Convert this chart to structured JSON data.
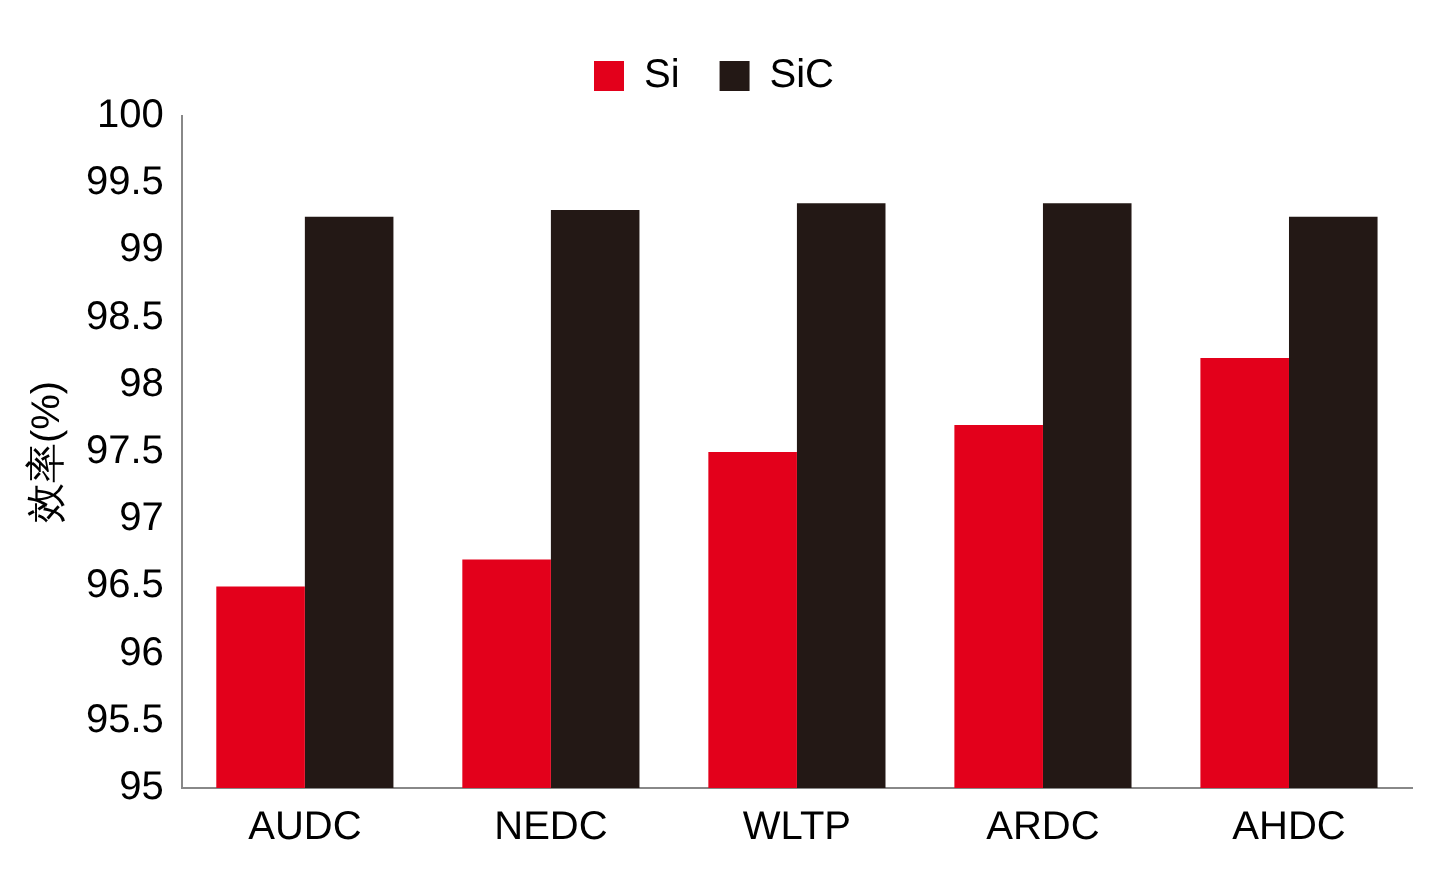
{
  "chart_data": {
    "type": "bar",
    "ylabel": "效率(%)",
    "categories": [
      "AUDC",
      "NEDC",
      "WLTP",
      "ARDC",
      "AHDC"
    ],
    "series": [
      {
        "name": "Si",
        "color": "#e3001b",
        "values": [
          96.5,
          96.7,
          97.5,
          97.7,
          98.2
        ]
      },
      {
        "name": "SiC",
        "color": "#231815",
        "values": [
          99.25,
          99.3,
          99.35,
          99.35,
          99.25
        ]
      }
    ],
    "ylim": [
      95,
      100
    ],
    "yticks": [
      95,
      {
        "value": 95.5,
        "label": "95.5"
      },
      96,
      {
        "value": 96.5,
        "label": "96.5"
      },
      97,
      {
        "value": 97.5,
        "label": "97.5"
      },
      98,
      {
        "value": 98.5,
        "label": "98.5"
      },
      99,
      {
        "value": 99.5,
        "label": "99.5"
      },
      100
    ],
    "grid": false,
    "legend": "top"
  }
}
